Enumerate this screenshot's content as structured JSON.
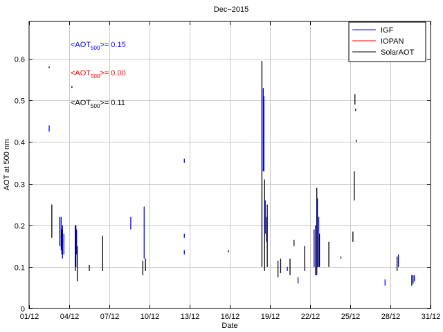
{
  "chart_data": {
    "type": "scatter",
    "title": "Dec−2015",
    "xlabel": "Date",
    "ylabel": "AOT at 500 nm",
    "xlim": [
      1,
      31
    ],
    "ylim": [
      0,
      0.69
    ],
    "grid": true,
    "legend_position": "top-right",
    "x_ticks": [
      {
        "value": 1,
        "label": "01/12"
      },
      {
        "value": 4,
        "label": "04/12"
      },
      {
        "value": 7,
        "label": "07/12"
      },
      {
        "value": 10,
        "label": "10/12"
      },
      {
        "value": 13,
        "label": "13/12"
      },
      {
        "value": 16,
        "label": "16/12"
      },
      {
        "value": 19,
        "label": "19/12"
      },
      {
        "value": 22,
        "label": "22/12"
      },
      {
        "value": 25,
        "label": "25/12"
      },
      {
        "value": 28,
        "label": "28/12"
      },
      {
        "value": 31,
        "label": "31/12"
      }
    ],
    "y_ticks": [
      {
        "value": 0,
        "label": "0"
      },
      {
        "value": 0.1,
        "label": "0.1"
      },
      {
        "value": 0.2,
        "label": "0.2"
      },
      {
        "value": 0.3,
        "label": "0.3"
      },
      {
        "value": 0.4,
        "label": "0.4"
      },
      {
        "value": 0.5,
        "label": "0.5"
      },
      {
        "value": 0.6,
        "label": "0.6"
      }
    ],
    "annotations": [
      {
        "prefix": "<AOT",
        "sub": "500",
        "suffix": ">= 0.15",
        "color": "#0000ff"
      },
      {
        "prefix": "<AOT",
        "sub": "500",
        "suffix": ">= 0.00",
        "color": "#ff0000"
      },
      {
        "prefix": "<AOT",
        "sub": "500",
        "suffix": ">= 0.11",
        "color": "#000000"
      }
    ],
    "series": [
      {
        "name": "IGF",
        "color": "#0000ff",
        "segments": [
          {
            "x": 2.5,
            "y": [
              0.425,
              0.44
            ]
          },
          {
            "x": 3.4,
            "y": [
              0.14,
              0.22
            ]
          },
          {
            "x": 3.5,
            "y": [
              0.12,
              0.2
            ]
          },
          {
            "x": 3.6,
            "y": [
              0.13,
              0.18
            ]
          },
          {
            "x": 4.5,
            "y": [
              0.1,
              0.2
            ]
          },
          {
            "x": 4.55,
            "y": [
              0.13,
              0.19
            ]
          },
          {
            "x": 8.6,
            "y": [
              0.19,
              0.22
            ]
          },
          {
            "x": 9.6,
            "y": [
              0.12,
              0.245
            ]
          },
          {
            "x": 12.6,
            "y": [
              0.35,
              0.36
            ]
          },
          {
            "x": 12.6,
            "y": [
              0.17,
              0.18
            ]
          },
          {
            "x": 12.6,
            "y": [
              0.13,
              0.14
            ]
          },
          {
            "x": 18.5,
            "y": [
              0.33,
              0.53
            ]
          },
          {
            "x": 18.55,
            "y": [
              0.33,
              0.51
            ]
          },
          {
            "x": 18.65,
            "y": [
              0.18,
              0.26
            ]
          },
          {
            "x": 18.75,
            "y": [
              0.16,
              0.22
            ]
          },
          {
            "x": 20.3,
            "y": [
              0.09,
              0.1
            ]
          },
          {
            "x": 21.1,
            "y": [
              0.06,
              0.075
            ]
          },
          {
            "x": 22.4,
            "y": [
              0.08,
              0.2
            ]
          },
          {
            "x": 22.55,
            "y": [
              0.1,
              0.265
            ]
          },
          {
            "x": 22.65,
            "y": [
              0.1,
              0.22
            ]
          },
          {
            "x": 27.6,
            "y": [
              0.055,
              0.07
            ]
          },
          {
            "x": 28.6,
            "y": [
              0.1,
              0.13
            ]
          },
          {
            "x": 29.7,
            "y": [
              0.06,
              0.08
            ]
          },
          {
            "x": 29.8,
            "y": [
              0.065,
              0.08
            ]
          }
        ]
      },
      {
        "name": "IOPAN",
        "color": "#ff0000",
        "segments": []
      },
      {
        "name": "SolarAOT",
        "color": "#000000",
        "segments": [
          {
            "x": 2.5,
            "y": [
              0.578,
              0.582
            ]
          },
          {
            "x": 2.7,
            "y": [
              0.17,
              0.25
            ]
          },
          {
            "x": 3.3,
            "y": [
              0.15,
              0.22
            ]
          },
          {
            "x": 3.45,
            "y": [
              0.13,
              0.19
            ]
          },
          {
            "x": 4.2,
            "y": [
              0.53,
              0.535
            ]
          },
          {
            "x": 4.45,
            "y": [
              0.09,
              0.2
            ]
          },
          {
            "x": 4.6,
            "y": [
              0.065,
              0.15
            ]
          },
          {
            "x": 5.5,
            "y": [
              0.09,
              0.105
            ]
          },
          {
            "x": 6.5,
            "y": [
              0.09,
              0.175
            ]
          },
          {
            "x": 9.5,
            "y": [
              0.08,
              0.115
            ]
          },
          {
            "x": 9.7,
            "y": [
              0.09,
              0.12
            ]
          },
          {
            "x": 15.9,
            "y": [
              0.135,
              0.14
            ]
          },
          {
            "x": 18.4,
            "y": [
              0.1,
              0.595
            ]
          },
          {
            "x": 18.6,
            "y": [
              0.09,
              0.31
            ]
          },
          {
            "x": 18.8,
            "y": [
              0.1,
              0.25
            ]
          },
          {
            "x": 19.6,
            "y": [
              0.075,
              0.115
            ]
          },
          {
            "x": 19.8,
            "y": [
              0.085,
              0.12
            ]
          },
          {
            "x": 20.5,
            "y": [
              0.08,
              0.12
            ]
          },
          {
            "x": 20.8,
            "y": [
              0.15,
              0.165
            ]
          },
          {
            "x": 21.6,
            "y": [
              0.09,
              0.15
            ]
          },
          {
            "x": 22.3,
            "y": [
              0.1,
              0.19
            ]
          },
          {
            "x": 22.5,
            "y": [
              0.08,
              0.29
            ]
          },
          {
            "x": 22.7,
            "y": [
              0.1,
              0.18
            ]
          },
          {
            "x": 23.4,
            "y": [
              0.1,
              0.16
            ]
          },
          {
            "x": 24.3,
            "y": [
              0.12,
              0.125
            ]
          },
          {
            "x": 25.2,
            "y": [
              0.16,
              0.185
            ]
          },
          {
            "x": 25.3,
            "y": [
              0.26,
              0.33
            ]
          },
          {
            "x": 25.35,
            "y": [
              0.49,
              0.515
            ]
          },
          {
            "x": 25.4,
            "y": [
              0.475,
              0.48
            ]
          },
          {
            "x": 25.45,
            "y": [
              0.4,
              0.405
            ]
          },
          {
            "x": 28.5,
            "y": [
              0.09,
              0.125
            ]
          },
          {
            "x": 29.6,
            "y": [
              0.055,
              0.08
            ]
          }
        ]
      }
    ]
  }
}
